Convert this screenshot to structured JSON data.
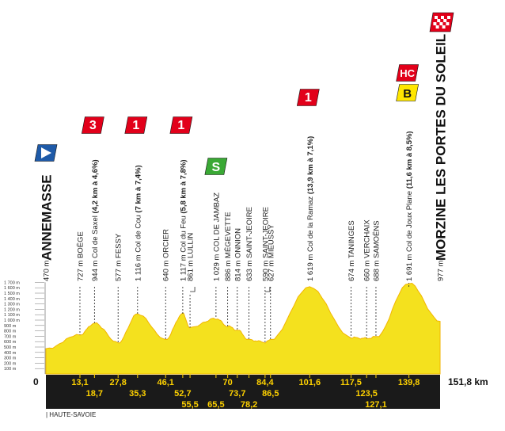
{
  "stage": {
    "distance_label": "151,8 km",
    "start_km_label": "0",
    "region": "| HAUTE-SAVOIE"
  },
  "altitude_scale": [
    "1 700 m",
    "1 600 m",
    "1 500 m",
    "1 400 m",
    "1 300 m",
    "1 200 m",
    "1 100 m",
    "1 000 m",
    "900 m",
    "800 m",
    "700 m",
    "600 m",
    "500 m",
    "400 m",
    "300 m",
    "200 m",
    "100 m"
  ],
  "waypoints": [
    {
      "km": 0,
      "km_label": "",
      "row": 0,
      "alt": 470,
      "label": "470 m ANNEMASSE",
      "alt_text": "470 m",
      "name": "ANNEMASSE",
      "big": true
    },
    {
      "km": 13.1,
      "km_label": "13,1",
      "row": 0,
      "alt": 727,
      "label": "727 m BOËGE"
    },
    {
      "km": 18.7,
      "km_label": "18,7",
      "row": 1,
      "alt": 944,
      "label": "944 m Col de Saxel",
      "detail": "(4,2 km à 4,6%)"
    },
    {
      "km": 27.8,
      "km_label": "27,8",
      "row": 0,
      "alt": 577,
      "label": "577 m FESSY"
    },
    {
      "km": 35.3,
      "km_label": "35,3",
      "row": 1,
      "alt": 1116,
      "label": "1 116 m Col de Cou",
      "detail": "(7 km à 7,4%)"
    },
    {
      "km": 46.1,
      "km_label": "46,1",
      "row": 0,
      "alt": 640,
      "label": "640 m ORCIER"
    },
    {
      "km": 52.7,
      "km_label": "52,7",
      "row": 1,
      "alt": 1117,
      "label": "1 117 m Col du Feu",
      "detail": "(5,8 km à 7,8%)"
    },
    {
      "km": 55.5,
      "km_label": "55,5",
      "row": 2,
      "alt": 861,
      "label": "861 m LULLIN"
    },
    {
      "km": 65.5,
      "km_label": "65,5",
      "row": 2,
      "alt": 1029,
      "label": "1 029 m COL DE JAMBAZ"
    },
    {
      "km": 70,
      "km_label": "70",
      "row": 0,
      "alt": 886,
      "label": "886 m MÉGEVETTE"
    },
    {
      "km": 73.7,
      "km_label": "73,7",
      "row": 1,
      "alt": 814,
      "label": "814 m ONNION"
    },
    {
      "km": 78.2,
      "km_label": "78,2",
      "row": 2,
      "alt": 633,
      "label": "633 m SAINT-JEOIRE"
    },
    {
      "km": 84.4,
      "km_label": "84,4",
      "row": 0,
      "alt": 590,
      "label": "590 m SAINT-JEOIRE"
    },
    {
      "km": 86.5,
      "km_label": "86,5",
      "row": 1,
      "alt": 627,
      "label": "627 m MIEUSSY"
    },
    {
      "km": 101.6,
      "km_label": "101,6",
      "row": 0,
      "alt": 1619,
      "label": "1 619 m Col de la Ramaz",
      "detail": "(13,9 km à 7,1%)"
    },
    {
      "km": 117.5,
      "km_label": "117,5",
      "row": 0,
      "alt": 674,
      "label": "674 m TANINGES"
    },
    {
      "km": 123.5,
      "km_label": "123,5",
      "row": 1,
      "alt": 660,
      "label": "660 m VERCHAIX"
    },
    {
      "km": 127.1,
      "km_label": "127,1",
      "row": 2,
      "alt": 688,
      "label": "688 m SAMOËNS"
    },
    {
      "km": 139.8,
      "km_label": "139,8",
      "row": 0,
      "alt": 1691,
      "label": "1 691 m Col de Joux Plane",
      "detail": "(11,6 km à 8,5%)"
    },
    {
      "km": 151.8,
      "km_label": "",
      "row": 0,
      "alt": 977,
      "label": "977 m MORZINE LES PORTES DU SOLEIL",
      "alt_text": "977 m",
      "name": "MORZINE LES PORTES DU SOLEIL",
      "big": true
    }
  ],
  "badges": [
    {
      "type": "start",
      "at_km": 0
    },
    {
      "type": "cat",
      "text": "3",
      "at_km": 18.7
    },
    {
      "type": "cat",
      "text": "1",
      "at_km": 35.3
    },
    {
      "type": "cat",
      "text": "1",
      "at_km": 52.7
    },
    {
      "type": "sprint",
      "text": "S",
      "at_km": 65.5
    },
    {
      "type": "cat",
      "text": "1",
      "at_km": 101.6
    },
    {
      "type": "cat",
      "text": "HC",
      "at_km": 139.8
    },
    {
      "type": "bonus",
      "text": "B",
      "at_km": 139.8
    },
    {
      "type": "finish",
      "at_km": 151.8
    }
  ],
  "colors": {
    "profile_fill": "#f4e11e",
    "profile_edge": "#f2b600",
    "cat_badge": "#e2001a",
    "sprint_badge": "#3aa935",
    "bonus_badge": "#ffe600",
    "start_badge": "#1e5aa8",
    "km_strip": "#1a1a1a",
    "km_text": "#ffd200"
  }
}
